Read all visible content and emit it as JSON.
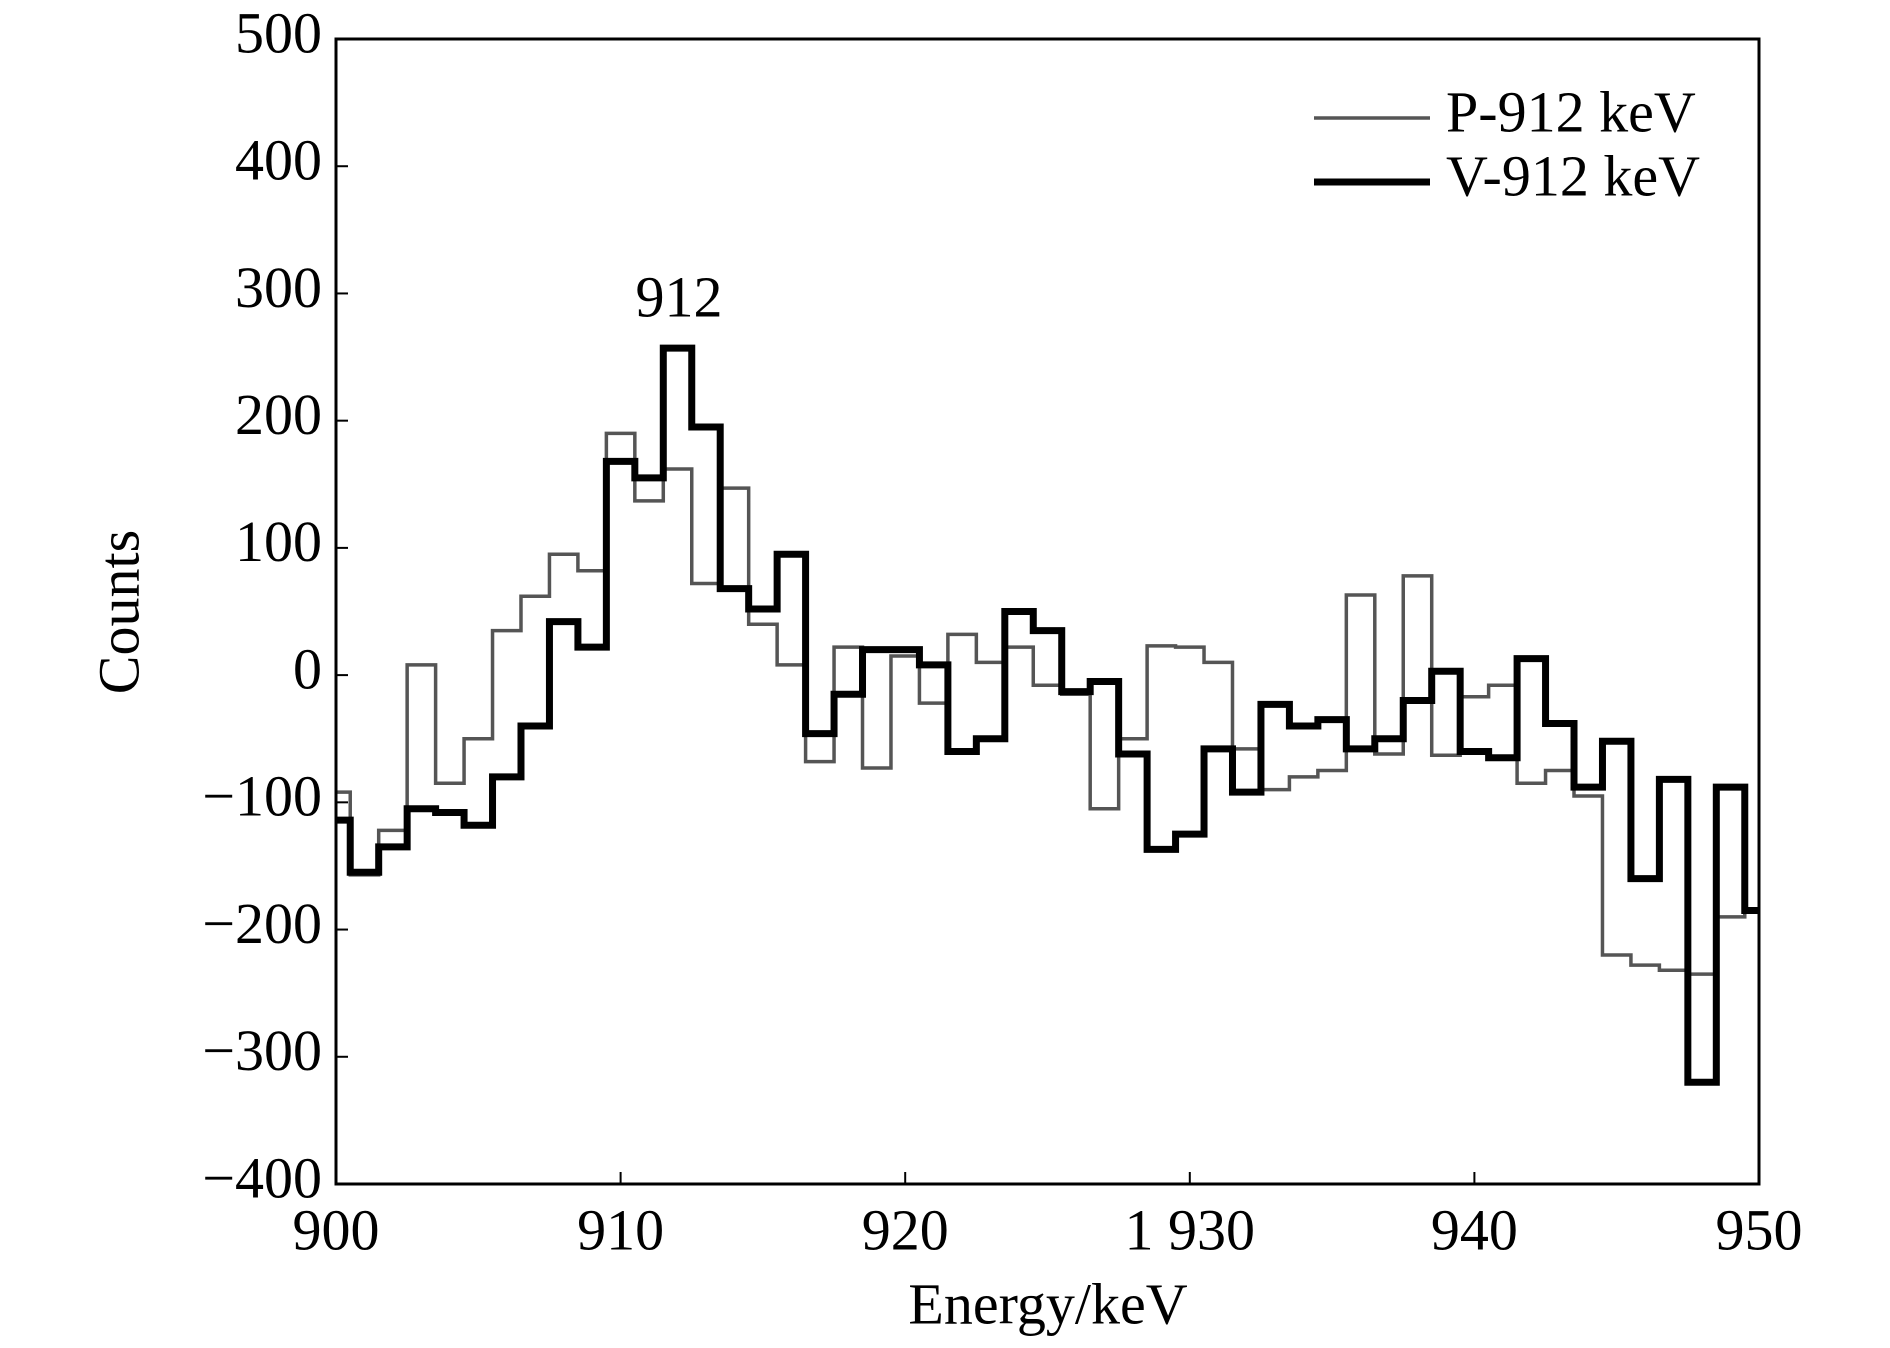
{
  "chart_data": {
    "type": "step",
    "x_label": "Energy/keV",
    "y_label": "Counts",
    "annotation": "912",
    "x": [
      900,
      901,
      902,
      903,
      904,
      905,
      906,
      907,
      908,
      909,
      910,
      911,
      912,
      913,
      914,
      915,
      916,
      917,
      918,
      919,
      920,
      921,
      922,
      923,
      924,
      925,
      926,
      927,
      928,
      929,
      930,
      931,
      932,
      933,
      934,
      935,
      936,
      937,
      938,
      939,
      940,
      941,
      942,
      943,
      944,
      945,
      946,
      947,
      948,
      949,
      950
    ],
    "series": [
      {
        "name": "P-912 keV",
        "color": "#555555",
        "values": [
          -92,
          -157,
          -122,
          8,
          -85,
          -50,
          35,
          62,
          95,
          82,
          190,
          137,
          162,
          72,
          147,
          40,
          8,
          -68,
          22,
          -73,
          15,
          -22,
          32,
          10,
          22,
          -8,
          -15,
          -105,
          -50,
          23,
          22,
          10,
          -58,
          -90,
          -80,
          -75,
          63,
          -62,
          78,
          -63,
          -17,
          -8,
          -85,
          -75,
          -95,
          -220,
          -228,
          -232,
          -235,
          -190,
          -185
        ]
      },
      {
        "name": "V-912 keV",
        "color": "#000000",
        "values": [
          -114,
          -155,
          -135,
          -105,
          -108,
          -118,
          -80,
          -40,
          42,
          22,
          168,
          155,
          257,
          195,
          68,
          52,
          95,
          -46,
          -15,
          20,
          20,
          8,
          -60,
          -50,
          50,
          35,
          -13,
          -5,
          -62,
          -137,
          -125,
          -58,
          -92,
          -23,
          -40,
          -35,
          -58,
          -50,
          -20,
          3,
          -60,
          -65,
          13,
          -38,
          -88,
          -52,
          -160,
          -82,
          -320,
          -88,
          -185
        ]
      }
    ],
    "xlim": [
      900,
      950
    ],
    "xticks": [
      900,
      910,
      920,
      {
        "value": 930,
        "label": "1 930"
      },
      940,
      950
    ],
    "ylim": [
      -400,
      500
    ],
    "yticks": [
      {
        "value": -400,
        "label": "−400"
      },
      {
        "value": -300,
        "label": "−300"
      },
      {
        "value": -200,
        "label": "−200"
      },
      {
        "value": -100,
        "label": "−100"
      },
      0,
      100,
      200,
      300,
      400,
      500
    ],
    "legend": "upper right"
  }
}
